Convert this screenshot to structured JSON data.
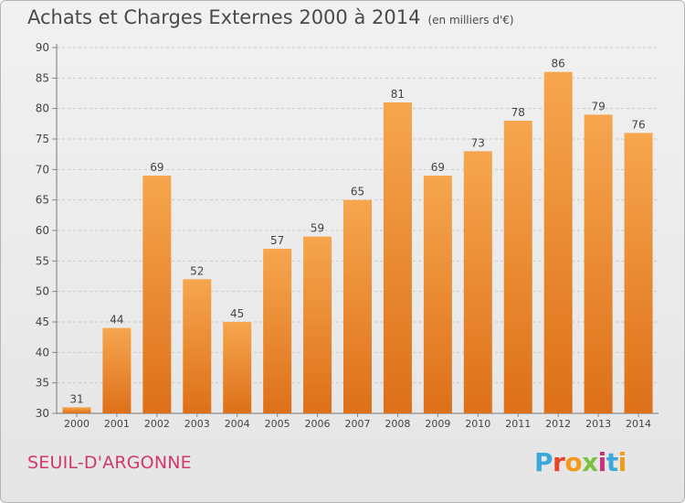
{
  "title": "Achats et Charges Externes 2000 à 2014",
  "unit": "(en milliers d'€)",
  "city": "SEUIL-D'ARGONNE",
  "logo": {
    "letters": [
      "P",
      "r",
      "o",
      "x",
      "i",
      "t",
      "i"
    ],
    "colors": [
      "#3aa8d8",
      "#e8432b",
      "#f39a1d",
      "#7cc142",
      "#d02f7d",
      "#3aa8d8",
      "#f39a1d"
    ]
  },
  "colors": {
    "bar_top": "#f6a64e",
    "bar_bottom": "#dd7019",
    "title": "#4a4a4a",
    "city": "#d03a6a"
  },
  "chart_data": {
    "type": "bar",
    "title": "Achats et Charges Externes 2000 à 2014",
    "subtitle": "(en milliers d'€)",
    "categories": [
      "2000",
      "2001",
      "2002",
      "2003",
      "2004",
      "2005",
      "2006",
      "2007",
      "2008",
      "2009",
      "2010",
      "2011",
      "2012",
      "2013",
      "2014"
    ],
    "values": [
      31,
      44,
      69,
      52,
      45,
      57,
      59,
      65,
      81,
      69,
      73,
      78,
      86,
      79,
      76
    ],
    "ylim": [
      30,
      90
    ],
    "yticks": [
      30,
      35,
      40,
      45,
      50,
      55,
      60,
      65,
      70,
      75,
      80,
      85,
      90
    ],
    "grid": true,
    "data_labels": true
  }
}
